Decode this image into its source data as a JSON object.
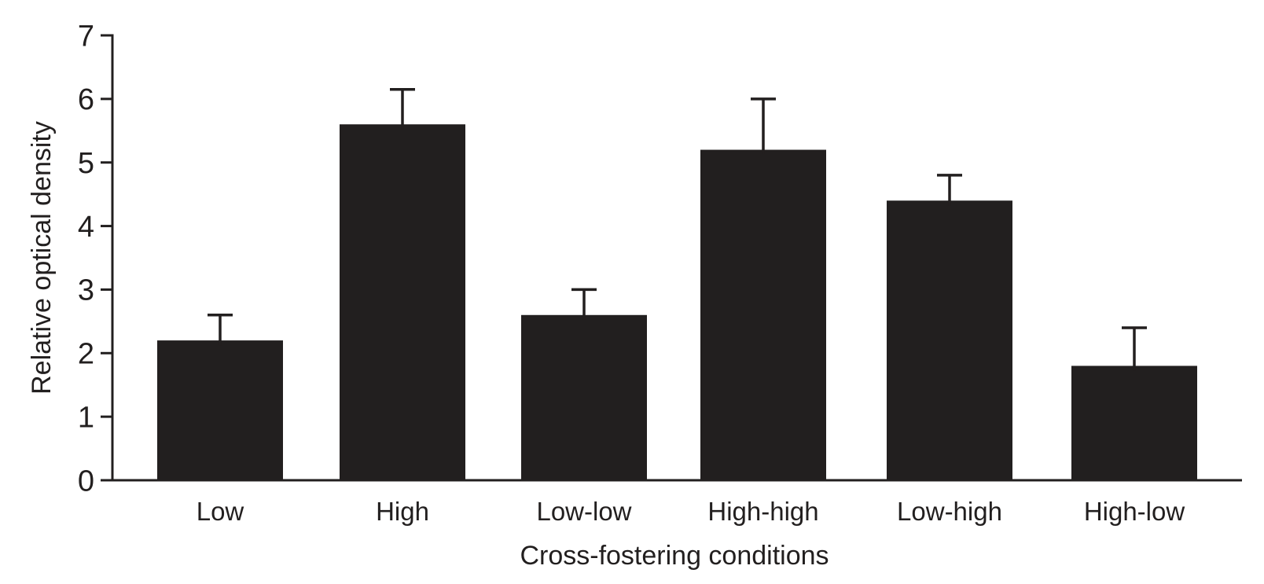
{
  "figure": {
    "background": "#ffffff",
    "ink_color": "#221f1f"
  },
  "chart_data": {
    "type": "bar",
    "xlabel": "Cross-fostering conditions",
    "ylabel": "Relative optical density",
    "categories": [
      "Low",
      "High",
      "Low-low",
      "High-high",
      "Low-high",
      "High-low"
    ],
    "values": [
      2.2,
      5.6,
      2.6,
      5.2,
      4.4,
      1.8
    ],
    "error_upper": [
      0.4,
      0.55,
      0.4,
      0.8,
      0.4,
      0.6
    ],
    "error_bars": "upper-only",
    "ylim": [
      0,
      7
    ],
    "yticks": [
      0,
      1,
      2,
      3,
      4,
      5,
      6,
      7
    ],
    "bar_color": "#221f1f",
    "grid": "off",
    "legend": "none"
  }
}
